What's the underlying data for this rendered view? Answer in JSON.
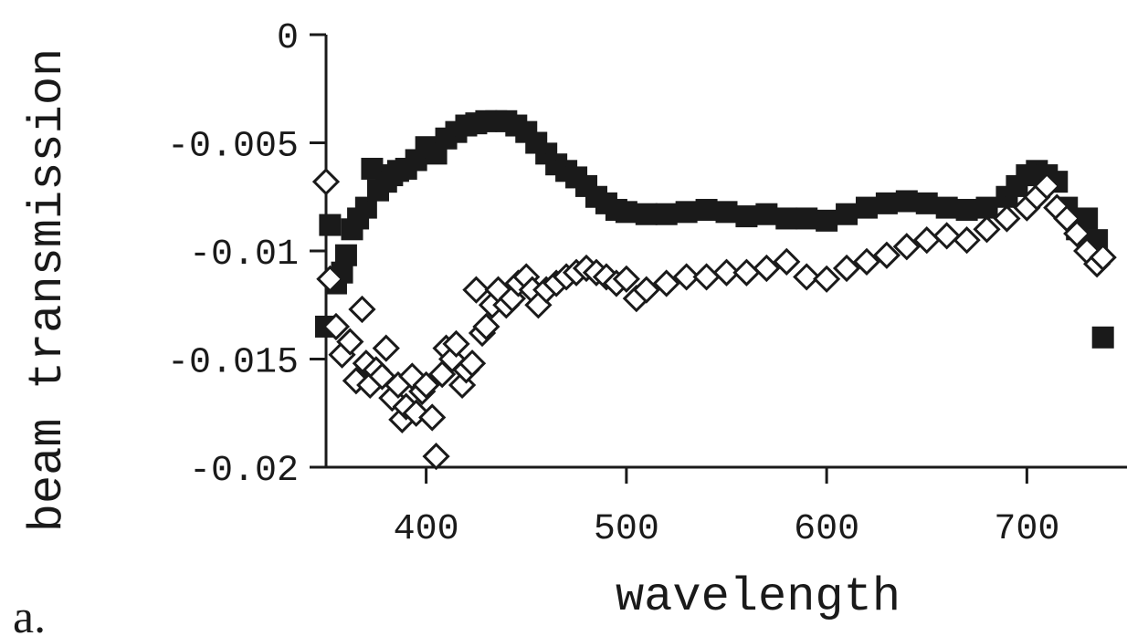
{
  "chart_data": {
    "type": "scatter",
    "panel_label": "a.",
    "xlabel": "wavelength",
    "ylabel": "beam transmission",
    "xlim": [
      350,
      750
    ],
    "ylim": [
      -0.02,
      0
    ],
    "x_ticks": [
      400,
      500,
      600,
      700
    ],
    "x_tick_labels": [
      "400",
      "500",
      "600",
      "700"
    ],
    "y_ticks": [
      0,
      -0.005,
      -0.01,
      -0.015,
      -0.02
    ],
    "y_tick_labels": [
      "0",
      "-0.005",
      "-0.01",
      "-0.015",
      "-0.02"
    ],
    "grid": false,
    "legend": "none",
    "series": [
      {
        "marker": "filled-square",
        "color": "#1a1a1a",
        "x": [
          350,
          352,
          355,
          358,
          360,
          363,
          366,
          370,
          373,
          376,
          380,
          383,
          386,
          390,
          395,
          400,
          405,
          410,
          415,
          420,
          425,
          430,
          435,
          440,
          445,
          450,
          455,
          460,
          465,
          470,
          475,
          480,
          485,
          490,
          495,
          500,
          510,
          520,
          530,
          540,
          550,
          560,
          570,
          580,
          590,
          600,
          610,
          620,
          630,
          640,
          650,
          660,
          670,
          680,
          690,
          695,
          700,
          705,
          710,
          715,
          720,
          725,
          730,
          735,
          738
        ],
        "y": [
          -0.0135,
          -0.0088,
          -0.0115,
          -0.011,
          -0.0102,
          -0.009,
          -0.0085,
          -0.008,
          -0.0062,
          -0.0072,
          -0.0068,
          -0.0065,
          -0.0063,
          -0.0062,
          -0.0058,
          -0.0052,
          -0.0055,
          -0.0048,
          -0.0045,
          -0.0042,
          -0.0041,
          -0.004,
          -0.004,
          -0.004,
          -0.0042,
          -0.0045,
          -0.005,
          -0.0055,
          -0.006,
          -0.0063,
          -0.0066,
          -0.007,
          -0.0075,
          -0.0078,
          -0.0081,
          -0.0082,
          -0.0083,
          -0.0083,
          -0.0082,
          -0.0081,
          -0.0082,
          -0.0084,
          -0.0083,
          -0.0085,
          -0.0085,
          -0.0086,
          -0.0083,
          -0.008,
          -0.0078,
          -0.0077,
          -0.0078,
          -0.008,
          -0.0081,
          -0.008,
          -0.0075,
          -0.007,
          -0.0065,
          -0.0063,
          -0.0065,
          -0.0068,
          -0.008,
          -0.009,
          -0.0085,
          -0.0095,
          -0.014
        ]
      },
      {
        "marker": "open-diamond",
        "color": "#1a1a1a",
        "x": [
          350,
          352,
          355,
          358,
          362,
          365,
          368,
          370,
          372,
          375,
          378,
          380,
          383,
          386,
          388,
          390,
          393,
          395,
          398,
          400,
          403,
          405,
          408,
          410,
          413,
          415,
          418,
          420,
          423,
          425,
          428,
          430,
          433,
          436,
          440,
          443,
          446,
          450,
          453,
          456,
          460,
          465,
          470,
          475,
          480,
          485,
          490,
          495,
          500,
          505,
          510,
          520,
          530,
          540,
          550,
          560,
          570,
          580,
          590,
          600,
          610,
          620,
          630,
          640,
          650,
          660,
          670,
          680,
          690,
          700,
          705,
          710,
          715,
          720,
          725,
          730,
          735,
          738
        ],
        "y": [
          -0.0068,
          -0.0113,
          -0.0135,
          -0.0148,
          -0.0142,
          -0.016,
          -0.0127,
          -0.0152,
          -0.0162,
          -0.0155,
          -0.0158,
          -0.0145,
          -0.0168,
          -0.0162,
          -0.0178,
          -0.0172,
          -0.0158,
          -0.0175,
          -0.0165,
          -0.0162,
          -0.0177,
          -0.0195,
          -0.0157,
          -0.0145,
          -0.015,
          -0.0143,
          -0.0162,
          -0.0155,
          -0.0152,
          -0.0118,
          -0.0138,
          -0.0135,
          -0.0125,
          -0.0118,
          -0.0125,
          -0.0122,
          -0.0115,
          -0.0112,
          -0.0118,
          -0.0125,
          -0.0118,
          -0.0115,
          -0.0112,
          -0.011,
          -0.0108,
          -0.011,
          -0.0112,
          -0.0115,
          -0.0113,
          -0.0122,
          -0.0118,
          -0.0115,
          -0.0112,
          -0.0112,
          -0.011,
          -0.011,
          -0.0108,
          -0.0105,
          -0.0112,
          -0.0113,
          -0.0108,
          -0.0105,
          -0.0102,
          -0.0098,
          -0.0095,
          -0.0093,
          -0.0095,
          -0.009,
          -0.0085,
          -0.008,
          -0.0075,
          -0.007,
          -0.008,
          -0.0085,
          -0.0092,
          -0.01,
          -0.0106,
          -0.0103
        ]
      }
    ]
  }
}
